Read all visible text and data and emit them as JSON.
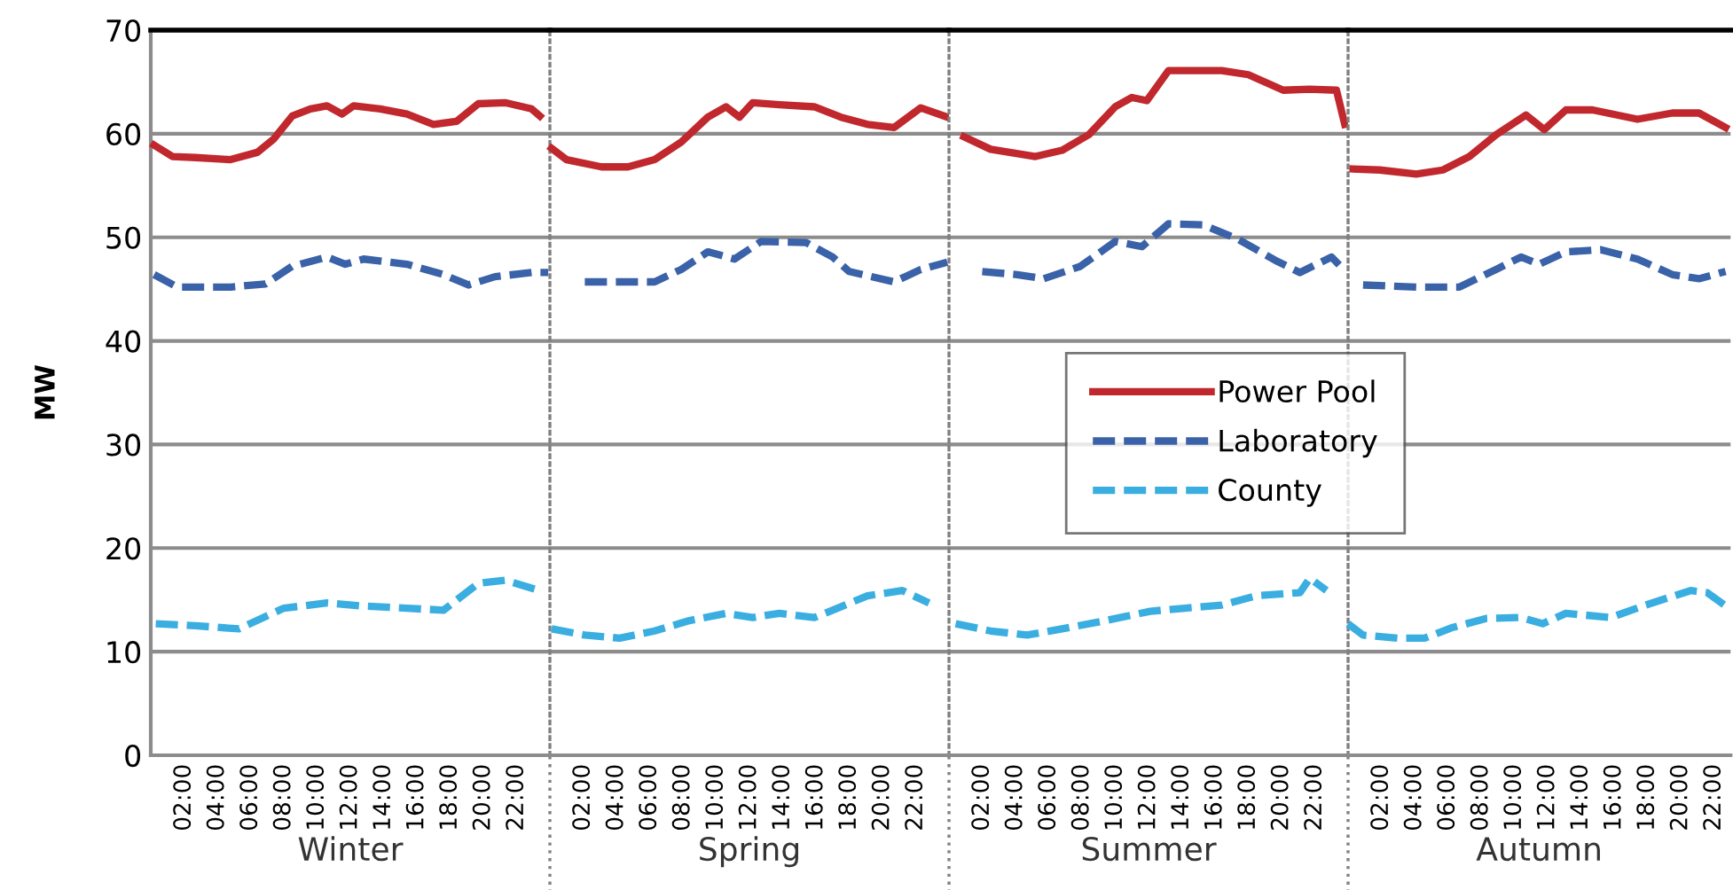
{
  "chart_data": [
    {
      "type": "line",
      "xlabel": "Winter",
      "ylabel": "MW",
      "ylim": [
        0,
        70
      ],
      "yticks": [
        0,
        10,
        20,
        30,
        40,
        50,
        60,
        70
      ],
      "xlim": [
        0,
        24
      ],
      "xticks": [
        {
          "value": 2,
          "label": "02:00"
        },
        {
          "value": 4,
          "label": "04:00"
        },
        {
          "value": 6,
          "label": "06:00"
        },
        {
          "value": 8,
          "label": "08:00"
        },
        {
          "value": 10,
          "label": "10:00"
        },
        {
          "value": 12,
          "label": "12:00"
        },
        {
          "value": 14,
          "label": "14:00"
        },
        {
          "value": 16,
          "label": "16:00"
        },
        {
          "value": 18,
          "label": "18:00"
        },
        {
          "value": 20,
          "label": "20:00"
        },
        {
          "value": 22,
          "label": "22:00"
        }
      ],
      "grid": "y",
      "marker": "none",
      "legend": "right",
      "series": [
        {
          "name": "Power Pool",
          "color": "#c0282d",
          "line_style": "solid",
          "x": [
            0.2,
            1.3,
            2.7,
            4.8,
            6.4,
            7.4,
            8.5,
            9.6,
            10.6,
            11.5,
            12.2,
            13.8,
            15.4,
            17.0,
            18.4,
            19.7,
            21.3,
            22.9,
            23.4
          ],
          "values": [
            58.9,
            57.8,
            57.7,
            57.5,
            58.2,
            59.5,
            61.7,
            62.4,
            62.7,
            61.9,
            62.7,
            62.4,
            61.9,
            60.9,
            61.2,
            62.9,
            63.0,
            62.4,
            61.7
          ]
        },
        {
          "name": "Laboratory",
          "color": "#3a62a8",
          "line_style": "dashed",
          "x": [
            0.2,
            1.6,
            4.8,
            6.9,
            8.5,
            10.6,
            11.7,
            12.8,
            15.4,
            17.6,
            19.1,
            20.7,
            22.9,
            23.9
          ],
          "values": [
            46.4,
            45.2,
            45.2,
            45.5,
            47.2,
            48.1,
            47.4,
            47.9,
            47.4,
            46.4,
            45.4,
            46.2,
            46.6,
            46.6
          ]
        },
        {
          "name": "County",
          "color": "#3aaee0",
          "line_style": "dashed",
          "x": [
            0.3,
            2.7,
            5.3,
            8.0,
            10.6,
            12.8,
            15.4,
            17.6,
            19.7,
            21.3,
            23.4
          ],
          "values": [
            12.7,
            12.5,
            12.2,
            14.2,
            14.7,
            14.4,
            14.2,
            14.0,
            16.6,
            16.9,
            15.9
          ]
        }
      ]
    },
    {
      "type": "line",
      "xlabel": "Spring",
      "ylim": [
        0,
        70
      ],
      "yticks": [
        0,
        10,
        20,
        30,
        40,
        50,
        60,
        70
      ],
      "xlim": [
        0,
        24
      ],
      "xticks": [
        {
          "value": 2,
          "label": "02:00"
        },
        {
          "value": 4,
          "label": "04:00"
        },
        {
          "value": 6,
          "label": "06:00"
        },
        {
          "value": 8,
          "label": "08:00"
        },
        {
          "value": 10,
          "label": "10:00"
        },
        {
          "value": 12,
          "label": "12:00"
        },
        {
          "value": 14,
          "label": "14:00"
        },
        {
          "value": 16,
          "label": "16:00"
        },
        {
          "value": 18,
          "label": "18:00"
        },
        {
          "value": 20,
          "label": "20:00"
        },
        {
          "value": 22,
          "label": "22:00"
        }
      ],
      "grid": "y",
      "marker": "none",
      "tick_labels": "x",
      "series": [
        {
          "color": "#c0282d",
          "line_style": "solid",
          "x": [
            0.1,
            1.0,
            3.1,
            4.7,
            6.3,
            7.9,
            9.5,
            10.6,
            11.4,
            12.2,
            13.8,
            15.9,
            17.5,
            19.1,
            20.7,
            22.3,
            23.9
          ],
          "values": [
            58.6,
            57.5,
            56.8,
            56.8,
            57.5,
            59.2,
            61.6,
            62.6,
            61.6,
            63.0,
            62.8,
            62.6,
            61.6,
            60.9,
            60.6,
            62.5,
            61.6
          ]
        },
        {
          "color": "#3a62a8",
          "line_style": "dashed",
          "x": [
            2.1,
            4.2,
            6.3,
            7.9,
            9.5,
            11.1,
            12.7,
            15.4,
            17.0,
            18.0,
            20.7,
            22.3,
            23.9
          ],
          "values": [
            45.7,
            45.7,
            45.7,
            46.9,
            48.6,
            47.9,
            49.6,
            49.5,
            48.1,
            46.7,
            45.7,
            46.9,
            47.6
          ]
        },
        {
          "color": "#3aaee0",
          "line_style": "dashed",
          "x": [
            0.1,
            2.1,
            4.2,
            6.3,
            8.4,
            10.6,
            12.2,
            13.8,
            15.9,
            17.0,
            19.1,
            21.2,
            22.8
          ],
          "values": [
            12.2,
            11.6,
            11.3,
            12.0,
            13.0,
            13.7,
            13.3,
            13.7,
            13.3,
            14.0,
            15.4,
            15.9,
            14.7
          ]
        }
      ]
    },
    {
      "type": "line",
      "xlabel": "Summer",
      "ylim": [
        0,
        70
      ],
      "yticks": [
        0,
        10,
        20,
        30,
        40,
        50,
        60,
        70
      ],
      "xlim": [
        0,
        24
      ],
      "xticks": [
        {
          "value": 2,
          "label": "02:00"
        },
        {
          "value": 4,
          "label": "04:00"
        },
        {
          "value": 6,
          "label": "06:00"
        },
        {
          "value": 8,
          "label": "08:00"
        },
        {
          "value": 10,
          "label": "10:00"
        },
        {
          "value": 12,
          "label": "12:00"
        },
        {
          "value": 14,
          "label": "14:00"
        },
        {
          "value": 16,
          "label": "16:00"
        },
        {
          "value": 18,
          "label": "18:00"
        },
        {
          "value": 20,
          "label": "20:00"
        },
        {
          "value": 22,
          "label": "22:00"
        }
      ],
      "grid": "y",
      "marker": "none",
      "tick_labels": "x",
      "series": [
        {
          "color": "#c0282d",
          "line_style": "solid",
          "x": [
            0.9,
            2.5,
            5.2,
            6.8,
            8.4,
            10.0,
            11.0,
            11.9,
            13.2,
            16.4,
            18.0,
            20.1,
            21.7,
            23.3,
            23.8
          ],
          "values": [
            59.7,
            58.5,
            57.8,
            58.4,
            59.9,
            62.6,
            63.5,
            63.2,
            66.1,
            66.1,
            65.7,
            64.2,
            64.3,
            64.2,
            60.9
          ]
        },
        {
          "color": "#3a62a8",
          "line_style": "dashed",
          "x": [
            2.0,
            4.1,
            5.7,
            7.9,
            10.0,
            11.6,
            13.2,
            15.3,
            17.4,
            19.6,
            21.1,
            23.0,
            23.6
          ],
          "values": [
            46.7,
            46.4,
            46.0,
            47.2,
            49.6,
            49.1,
            51.3,
            51.2,
            49.8,
            47.8,
            46.6,
            48.1,
            47.1
          ]
        },
        {
          "color": "#3aaee0",
          "line_style": "dashed",
          "x": [
            0.4,
            2.5,
            4.7,
            6.8,
            9.4,
            12.1,
            14.2,
            16.4,
            18.5,
            21.1,
            21.7,
            22.7
          ],
          "values": [
            12.7,
            12.0,
            11.6,
            12.2,
            13.0,
            13.9,
            14.2,
            14.5,
            15.4,
            15.7,
            17.1,
            15.9
          ]
        }
      ]
    },
    {
      "type": "line",
      "xlabel": "Autumn",
      "ylim": [
        0,
        70
      ],
      "yticks": [
        0,
        10,
        20,
        30,
        40,
        50,
        60,
        70
      ],
      "xlim": [
        0,
        23
      ],
      "xticks": [
        {
          "value": 2,
          "label": "02:00"
        },
        {
          "value": 4,
          "label": "04:00"
        },
        {
          "value": 6,
          "label": "06:00"
        },
        {
          "value": 8,
          "label": "08:00"
        },
        {
          "value": 10,
          "label": "10:00"
        },
        {
          "value": 12,
          "label": "12:00"
        },
        {
          "value": 14,
          "label": "14:00"
        },
        {
          "value": 16,
          "label": "16:00"
        },
        {
          "value": 18,
          "label": "18:00"
        },
        {
          "value": 20,
          "label": "20:00"
        },
        {
          "value": 22,
          "label": "22:00"
        }
      ],
      "grid": "y",
      "marker": "none",
      "tick_labels": "x",
      "series": [
        {
          "color": "#c0282d",
          "line_style": "solid",
          "x": [
            0.3,
            1.9,
            4.1,
            5.7,
            7.3,
            8.9,
            10.7,
            11.8,
            13.1,
            14.7,
            17.4,
            19.5,
            21.1,
            22.7
          ],
          "values": [
            56.6,
            56.5,
            56.1,
            56.5,
            57.8,
            59.9,
            61.8,
            60.4,
            62.3,
            62.3,
            61.4,
            62.0,
            62.0,
            60.6
          ]
        },
        {
          "color": "#3a62a8",
          "line_style": "dashed",
          "x": [
            0.9,
            4.1,
            6.7,
            8.9,
            10.4,
            11.5,
            13.1,
            15.2,
            17.4,
            19.5,
            21.1,
            22.7
          ],
          "values": [
            45.4,
            45.2,
            45.2,
            46.9,
            48.1,
            47.4,
            48.6,
            48.8,
            47.9,
            46.4,
            46.0,
            46.7
          ]
        },
        {
          "color": "#3aaee0",
          "line_style": "dashed",
          "x": [
            0.0,
            0.9,
            3.0,
            4.6,
            6.2,
            8.3,
            10.4,
            11.7,
            13.1,
            15.8,
            17.9,
            20.6,
            21.6,
            22.9
          ],
          "values": [
            12.7,
            11.6,
            11.3,
            11.3,
            12.3,
            13.2,
            13.3,
            12.7,
            13.7,
            13.3,
            14.5,
            15.9,
            15.7,
            14.2
          ]
        }
      ]
    }
  ]
}
